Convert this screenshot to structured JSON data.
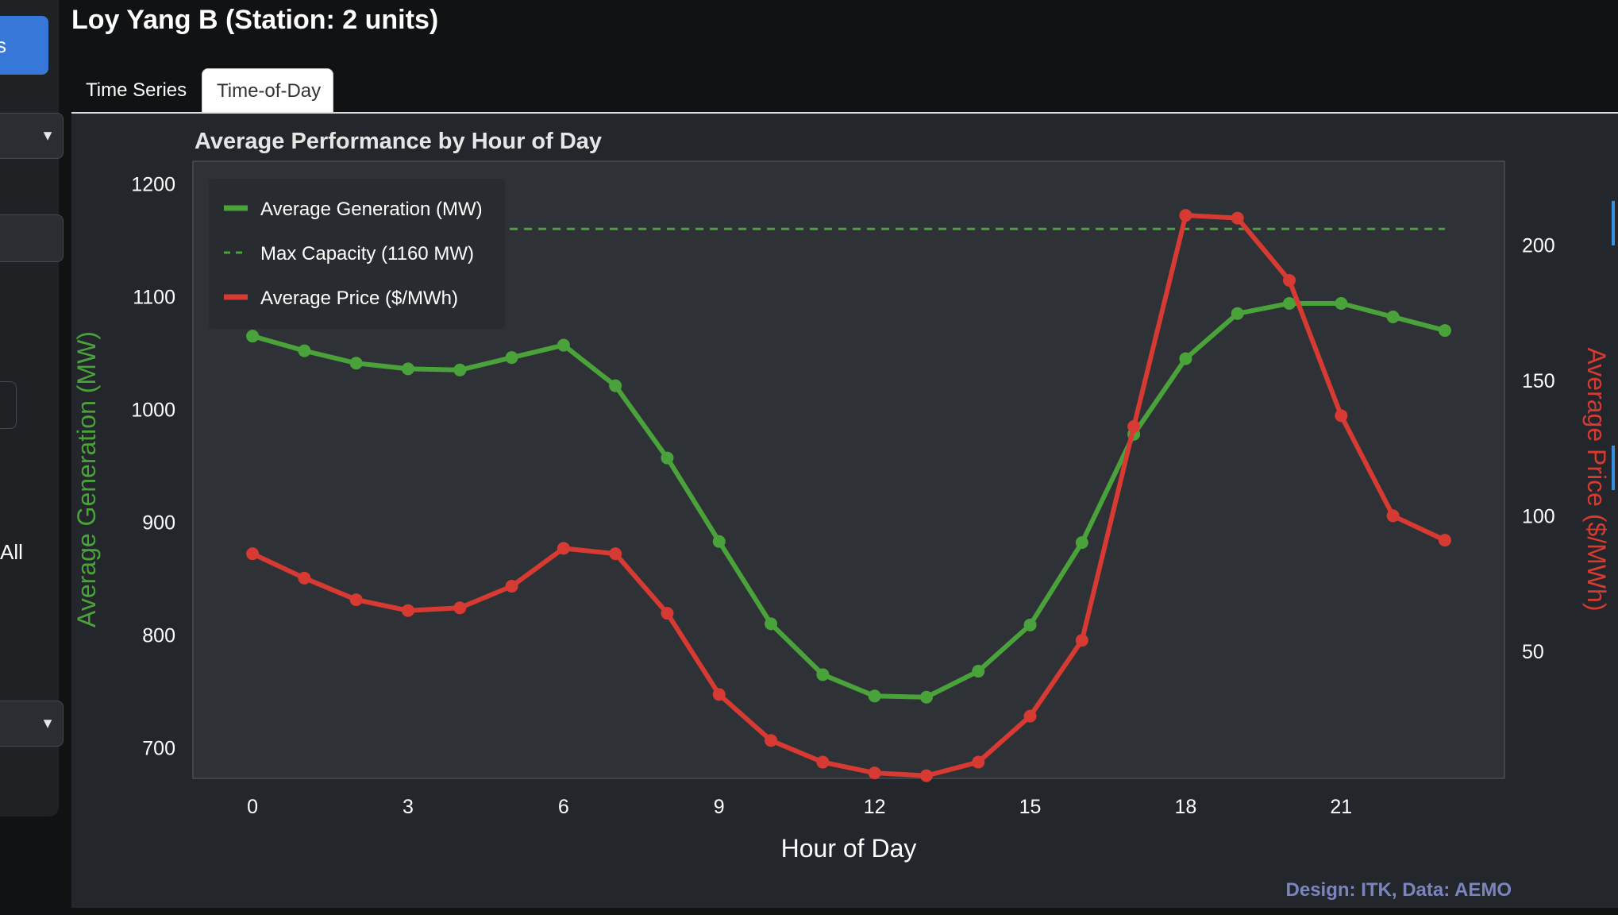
{
  "page": {
    "title": "Loy Yang B (Station: 2 units)"
  },
  "sidebar": {
    "button_label_partial": "s",
    "text_partial": "All",
    "select_arrow_1": "▼",
    "select_arrow_2": "▼"
  },
  "tabs": [
    {
      "label": "Time Series",
      "active": false
    },
    {
      "label": "Time-of-Day",
      "active": true
    }
  ],
  "colors": {
    "generation": "#4aa33a",
    "price": "#d63a32",
    "capacity": "#4aa33a",
    "credit": "#7a85c0",
    "panel_bg": "#23262a",
    "plot_bg": "#2e3135"
  },
  "footer": {
    "credit": "Design: ITK, Data: AEMO"
  },
  "chart_data": {
    "type": "line",
    "title": "Average Performance by Hour of Day",
    "xlabel": "Hour of Day",
    "ylabel_left": "Average Generation (MW)",
    "ylabel_right": "Average Price ($/MWh)",
    "x": [
      0,
      1,
      2,
      3,
      4,
      5,
      6,
      7,
      8,
      9,
      10,
      11,
      12,
      13,
      14,
      15,
      16,
      17,
      18,
      19,
      20,
      21,
      22,
      23
    ],
    "xticks": [
      0,
      3,
      6,
      9,
      12,
      15,
      18,
      21
    ],
    "xlim": [
      -1.15,
      24.15
    ],
    "yticks_left": [
      700,
      800,
      900,
      1000,
      1100,
      1200
    ],
    "ylim_left": [
      673,
      1220
    ],
    "yticks_right": [
      50,
      100,
      150,
      200
    ],
    "ylim_right": [
      3,
      231
    ],
    "legend": [
      {
        "label": "Average Generation (MW)",
        "style": "solid",
        "series": "generation"
      },
      {
        "label": "Max Capacity (1160 MW)",
        "style": "dashed",
        "series": "capacity"
      },
      {
        "label": "Average Price ($/MWh)",
        "style": "solid",
        "series": "price"
      }
    ],
    "legend_position": "top-left",
    "capacity_line": {
      "value": 1160,
      "x_range": [
        0,
        23
      ]
    },
    "series": [
      {
        "name": "Average Generation (MW)",
        "axis": "left",
        "values": [
          1065,
          1052,
          1041,
          1036,
          1035,
          1046,
          1057,
          1021,
          957,
          883,
          810,
          765,
          746,
          745,
          768,
          809,
          882,
          978,
          1045,
          1085,
          1094,
          1094,
          1082,
          1070
        ]
      },
      {
        "name": "Average Price ($/MWh)",
        "axis": "right",
        "values": [
          86,
          77,
          69,
          65,
          66,
          74,
          88,
          86,
          64,
          34,
          17,
          9,
          5,
          4,
          9,
          26,
          54,
          133,
          211,
          210,
          187,
          137,
          100,
          91
        ]
      }
    ]
  }
}
